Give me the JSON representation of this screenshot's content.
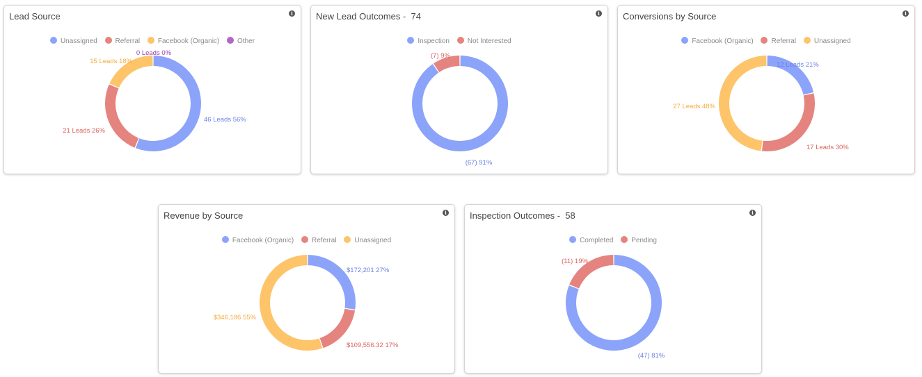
{
  "colors": {
    "blue": "#8ca3fa",
    "red": "#e5847f",
    "yellow": "#fdc46a",
    "purple": "#b168c4",
    "blue_text": "#6b82e6",
    "red_text": "#d9645f",
    "yellow_text": "#f4ab3c",
    "purple_text": "#9b42b5"
  },
  "chart_data": [
    {
      "type": "pie",
      "title": "Lead Source",
      "legend": [
        {
          "name": "Unassigned",
          "color": "blue"
        },
        {
          "name": "Referral",
          "color": "red"
        },
        {
          "name": "Facebook (Organic)",
          "color": "yellow"
        },
        {
          "name": "Other",
          "color": "purple"
        }
      ],
      "slices": [
        {
          "name": "Unassigned",
          "value": 46,
          "pct": 56,
          "label": "46 Leads 56%",
          "color": "blue"
        },
        {
          "name": "Referral",
          "value": 21,
          "pct": 26,
          "label": "21 Leads 26%",
          "color": "red"
        },
        {
          "name": "Facebook (Organic)",
          "value": 15,
          "pct": 18,
          "label": "15 Leads 18%",
          "color": "yellow"
        },
        {
          "name": "Other",
          "value": 0,
          "pct": 0,
          "label": "0 Leads 0%",
          "color": "purple"
        }
      ]
    },
    {
      "type": "pie",
      "title": "New Lead Outcomes -  74",
      "legend": [
        {
          "name": "Inspection",
          "color": "blue"
        },
        {
          "name": "Not Interested",
          "color": "red"
        }
      ],
      "slices": [
        {
          "name": "Inspection",
          "value": 67,
          "pct": 91,
          "label": "(67) 91%",
          "color": "blue"
        },
        {
          "name": "Not Interested",
          "value": 7,
          "pct": 9,
          "label": "(7) 9%",
          "color": "red"
        }
      ]
    },
    {
      "type": "pie",
      "title": "Conversions by Source",
      "legend": [
        {
          "name": "Facebook (Organic)",
          "color": "blue"
        },
        {
          "name": "Referral",
          "color": "red"
        },
        {
          "name": "Unassigned",
          "color": "yellow"
        }
      ],
      "slices": [
        {
          "name": "Facebook (Organic)",
          "value": 12,
          "pct": 21,
          "label": "12 Leads 21%",
          "color": "blue"
        },
        {
          "name": "Referral",
          "value": 17,
          "pct": 30,
          "label": "17 Leads 30%",
          "color": "red"
        },
        {
          "name": "Unassigned",
          "value": 27,
          "pct": 48,
          "label": "27 Leads 48%",
          "color": "yellow"
        }
      ]
    },
    {
      "type": "pie",
      "title": "Revenue by Source",
      "legend": [
        {
          "name": "Facebook (Organic)",
          "color": "blue"
        },
        {
          "name": "Referral",
          "color": "red"
        },
        {
          "name": "Unassigned",
          "color": "yellow"
        }
      ],
      "slices": [
        {
          "name": "Facebook (Organic)",
          "value": 172201,
          "pct": 27,
          "label": "$172,201 27%",
          "color": "blue"
        },
        {
          "name": "Referral",
          "value": 109556.32,
          "pct": 17,
          "label": "$109,556.32 17%",
          "color": "red"
        },
        {
          "name": "Unassigned",
          "value": 346186,
          "pct": 55,
          "label": "$346,186 55%",
          "color": "yellow"
        }
      ]
    },
    {
      "type": "pie",
      "title": "Inspection Outcomes -  58",
      "legend": [
        {
          "name": "Completed",
          "color": "blue"
        },
        {
          "name": "Pending",
          "color": "red"
        }
      ],
      "slices": [
        {
          "name": "Completed",
          "value": 47,
          "pct": 81,
          "label": "(47) 81%",
          "color": "blue"
        },
        {
          "name": "Pending",
          "value": 11,
          "pct": 19,
          "label": "(11) 19%",
          "color": "red"
        }
      ]
    }
  ]
}
